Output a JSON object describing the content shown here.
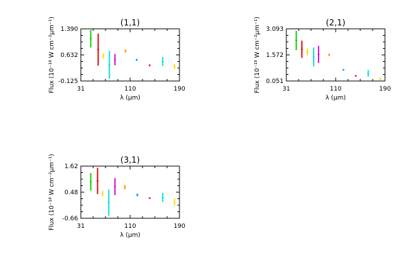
{
  "chart_data": [
    {
      "type": "scatter",
      "title": "(1,1)",
      "xlabel": "λ (μm)",
      "ylabel": "Flux (10⁻¹⁸ W cm⁻²μm⁻¹)",
      "xlim": [
        31,
        190
      ],
      "ylim": [
        -0.125,
        1.39
      ],
      "xticks": [
        "31",
        "110",
        "190"
      ],
      "yticks": [
        "1.390",
        "0.632",
        "-0.125"
      ],
      "segments": [
        {
          "x": 47,
          "y": [
            0.85,
            1.36
          ],
          "color": "#00cc00"
        },
        {
          "x": 59,
          "y": [
            0.32,
            1.25
          ],
          "color": "#dd0000"
        },
        {
          "x": 67,
          "y": [
            0.52,
            0.68
          ],
          "color": "#ffdd00"
        },
        {
          "x": 77,
          "y": [
            -0.06,
            0.75
          ],
          "color": "#00dddd"
        },
        {
          "x": 86,
          "y": [
            0.33,
            0.66
          ],
          "color": "#dd00dd"
        },
        {
          "x": 103,
          "y": [
            0.7,
            0.79
          ],
          "color": "#ff9900"
        },
        {
          "x": 121,
          "y": [
            0.46,
            0.52
          ],
          "color": "#0099ff"
        },
        {
          "x": 142,
          "y": [
            0.3,
            0.36
          ],
          "color": "#ff0066"
        },
        {
          "x": 163,
          "y": [
            0.31,
            0.57
          ],
          "color": "#00dddd"
        },
        {
          "x": 182,
          "y": [
            0.22,
            0.37
          ],
          "color": "#ffdd00"
        }
      ]
    },
    {
      "type": "scatter",
      "title": "(2,1)",
      "xlabel": "λ (μm)",
      "ylabel": "Flux (10⁻¹⁸ W cm⁻²μm⁻¹)",
      "xlim": [
        31,
        190
      ],
      "ylim": [
        0.051,
        3.093
      ],
      "xticks": [
        "31",
        "110",
        "190"
      ],
      "yticks": [
        "3.093",
        "1.572",
        "0.051"
      ],
      "segments": [
        {
          "x": 47,
          "y": [
            1.85,
            2.98
          ],
          "color": "#00cc00"
        },
        {
          "x": 56,
          "y": [
            1.4,
            2.4
          ],
          "color": "#dd0000"
        },
        {
          "x": 65,
          "y": [
            1.55,
            1.95
          ],
          "color": "#ffdd00"
        },
        {
          "x": 75,
          "y": [
            0.9,
            2.0
          ],
          "color": "#00dddd"
        },
        {
          "x": 83,
          "y": [
            1.1,
            2.1
          ],
          "color": "#dd00dd"
        },
        {
          "x": 100,
          "y": [
            1.5,
            1.65
          ],
          "color": "#ff9900"
        },
        {
          "x": 123,
          "y": [
            0.65,
            0.75
          ],
          "color": "#0099ff"
        },
        {
          "x": 143,
          "y": [
            0.3,
            0.4
          ],
          "color": "#ff0066"
        },
        {
          "x": 163,
          "y": [
            0.3,
            0.7
          ],
          "color": "#00dddd"
        },
        {
          "x": 182,
          "y": [
            0.1,
            0.25
          ],
          "color": "#ffdd00"
        }
      ]
    },
    {
      "type": "scatter",
      "title": "(3,1)",
      "xlabel": "λ (μm)",
      "ylabel": "Flux (10⁻¹⁸ W cm⁻²μm⁻¹)",
      "xlim": [
        31,
        190
      ],
      "ylim": [
        -0.66,
        1.62
      ],
      "xticks": [
        "31",
        "110",
        "190"
      ],
      "yticks": [
        "1.62",
        "0.48",
        "-0.66"
      ],
      "segments": [
        {
          "x": 47,
          "y": [
            0.55,
            1.32
          ],
          "color": "#00cc00"
        },
        {
          "x": 58,
          "y": [
            0.4,
            1.55
          ],
          "color": "#dd0000"
        },
        {
          "x": 66,
          "y": [
            0.3,
            0.55
          ],
          "color": "#ffdd00"
        },
        {
          "x": 76,
          "y": [
            -0.55,
            0.6
          ],
          "color": "#00dddd"
        },
        {
          "x": 86,
          "y": [
            0.35,
            1.1
          ],
          "color": "#dd00dd"
        },
        {
          "x": 102,
          "y": [
            0.6,
            0.8
          ],
          "color": "#ff9900"
        },
        {
          "x": 122,
          "y": [
            0.3,
            0.42
          ],
          "color": "#0099ff"
        },
        {
          "x": 142,
          "y": [
            0.18,
            0.26
          ],
          "color": "#ff0066"
        },
        {
          "x": 163,
          "y": [
            0.05,
            0.45
          ],
          "color": "#00dddd"
        },
        {
          "x": 182,
          "y": [
            -0.1,
            0.2
          ],
          "color": "#ffdd00"
        }
      ]
    }
  ]
}
